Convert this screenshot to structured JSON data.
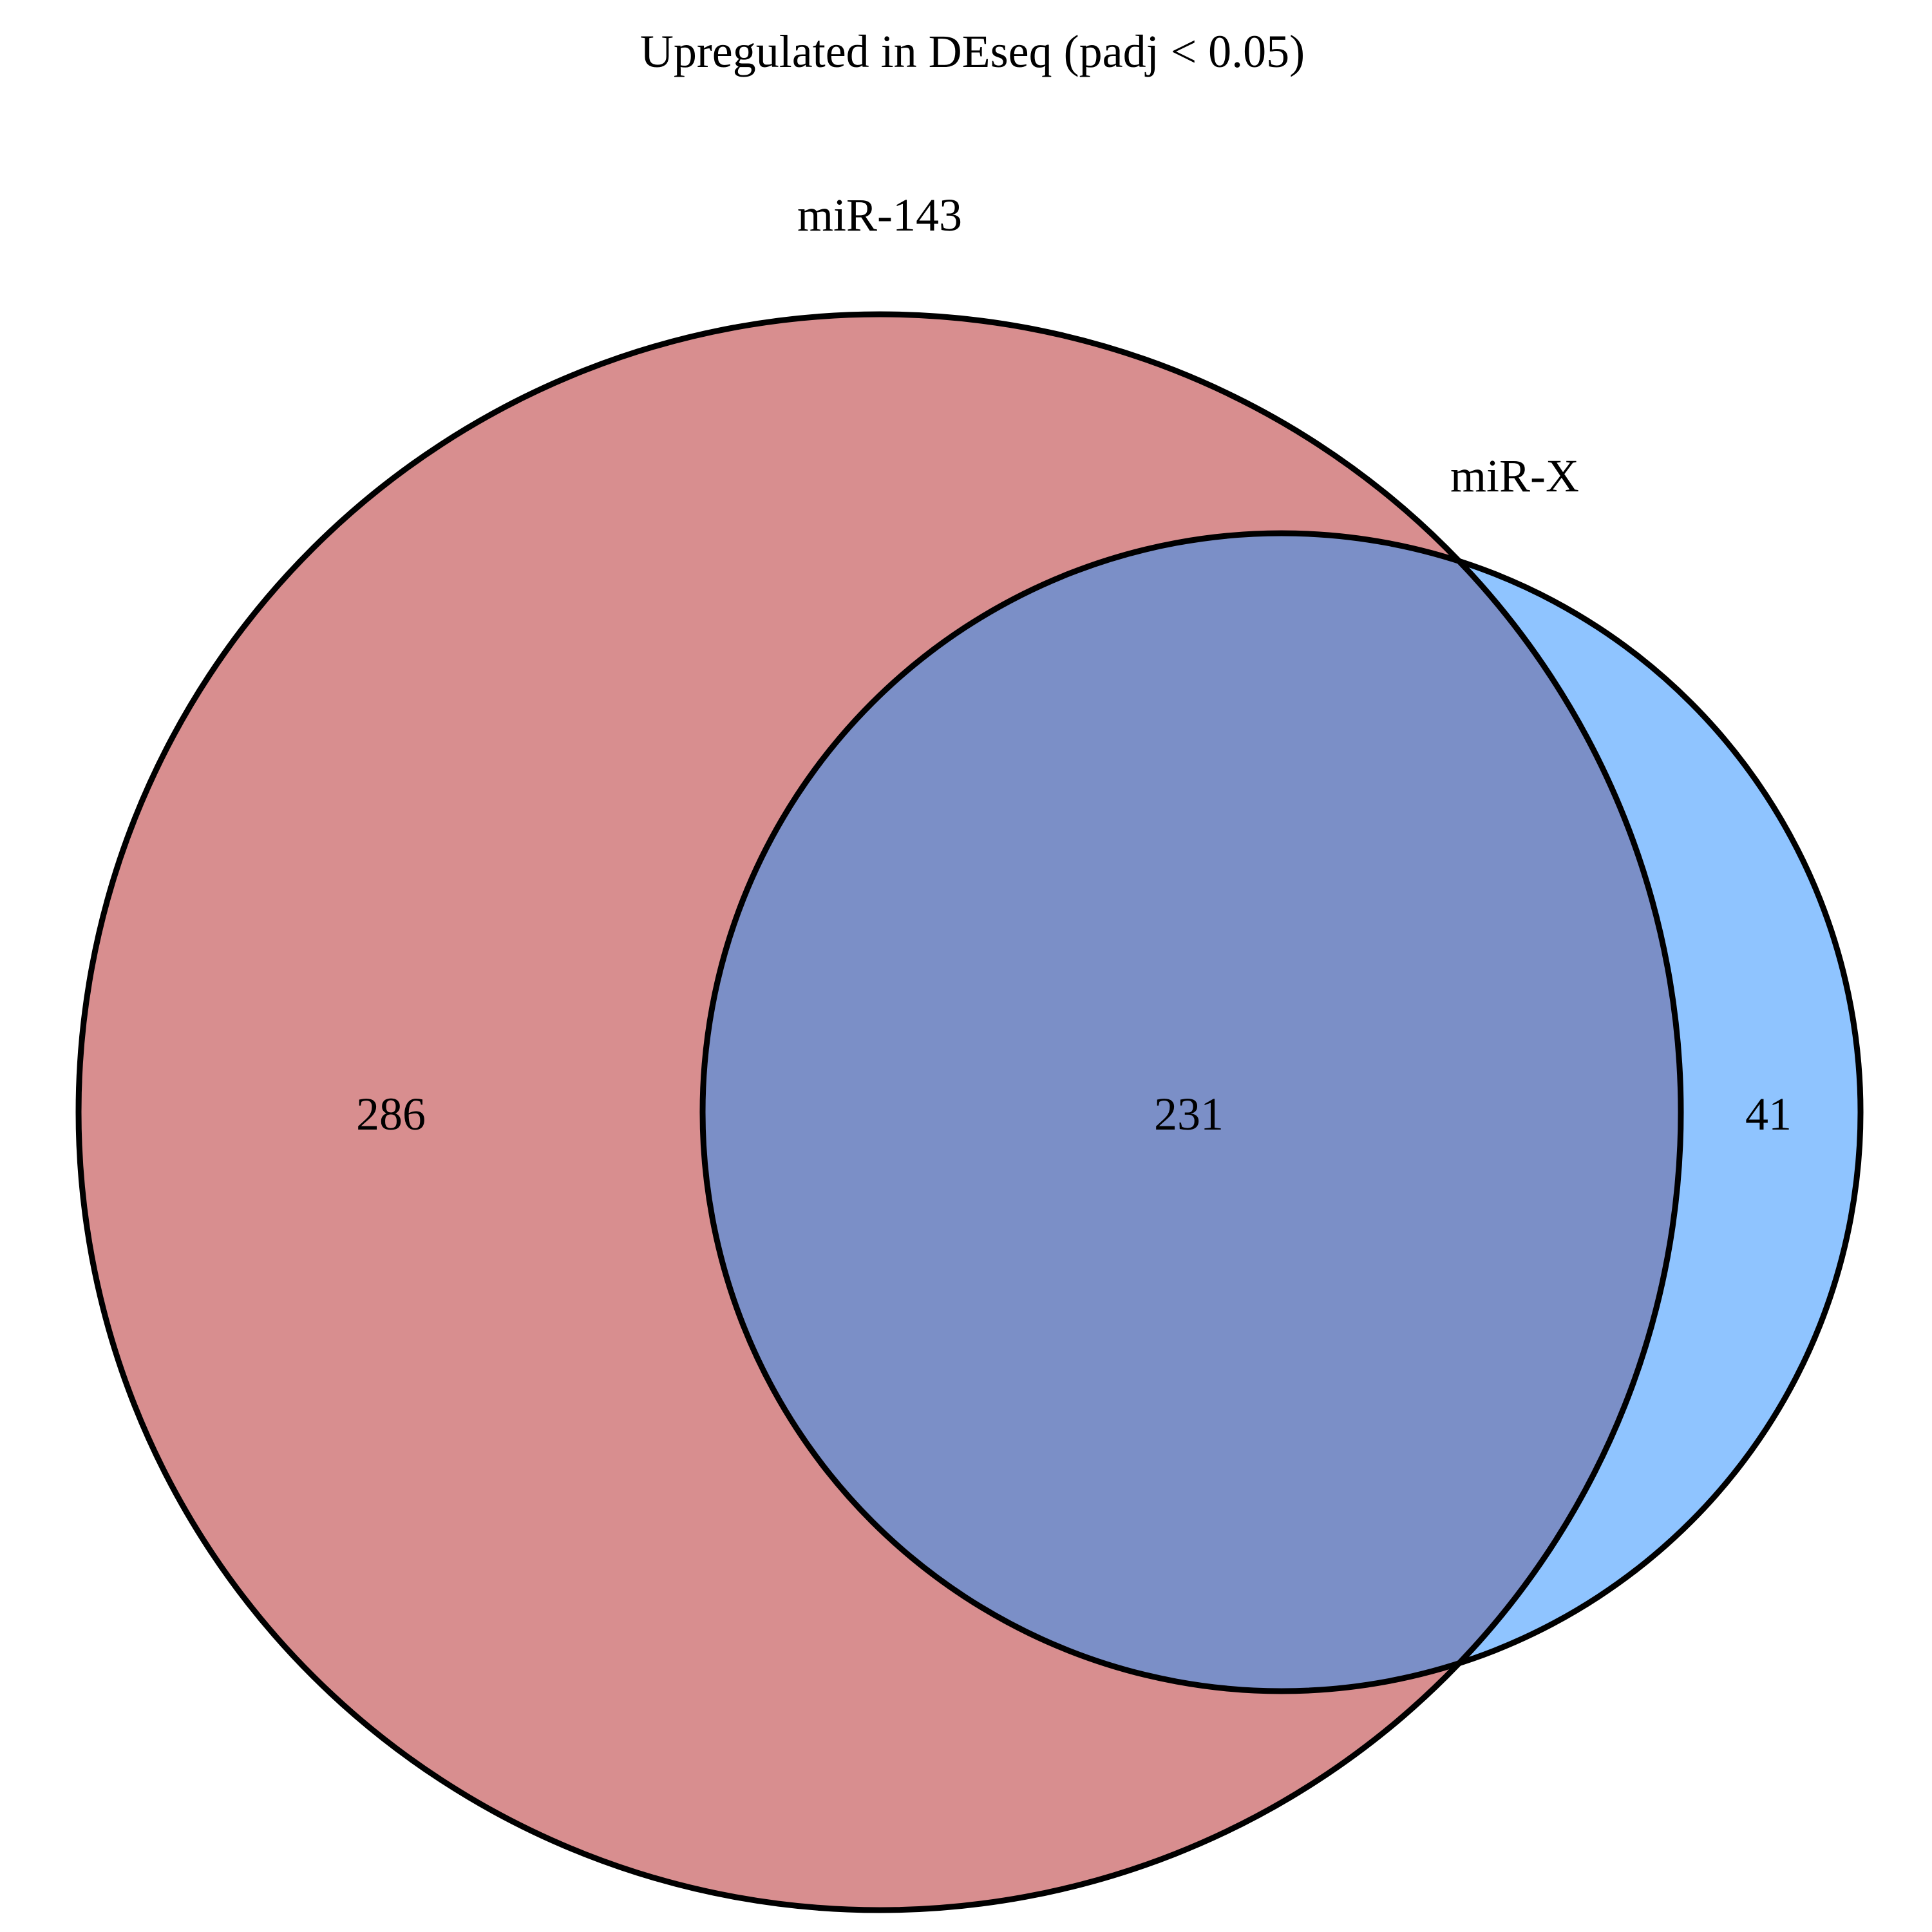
{
  "diagram": {
    "type": "venn",
    "title": "Upregulated in DEseq (padj < 0.05)",
    "sets": [
      {
        "name": "miR-143",
        "fill_color": "#d88e8f"
      },
      {
        "name": "miR-X",
        "fill_color": "#8fc4ff"
      }
    ],
    "overlap_fill_color": "#7b8fc7",
    "outline_color": "#000000",
    "counts": {
      "only_a": "286",
      "both": "231",
      "only_b": "41"
    }
  }
}
